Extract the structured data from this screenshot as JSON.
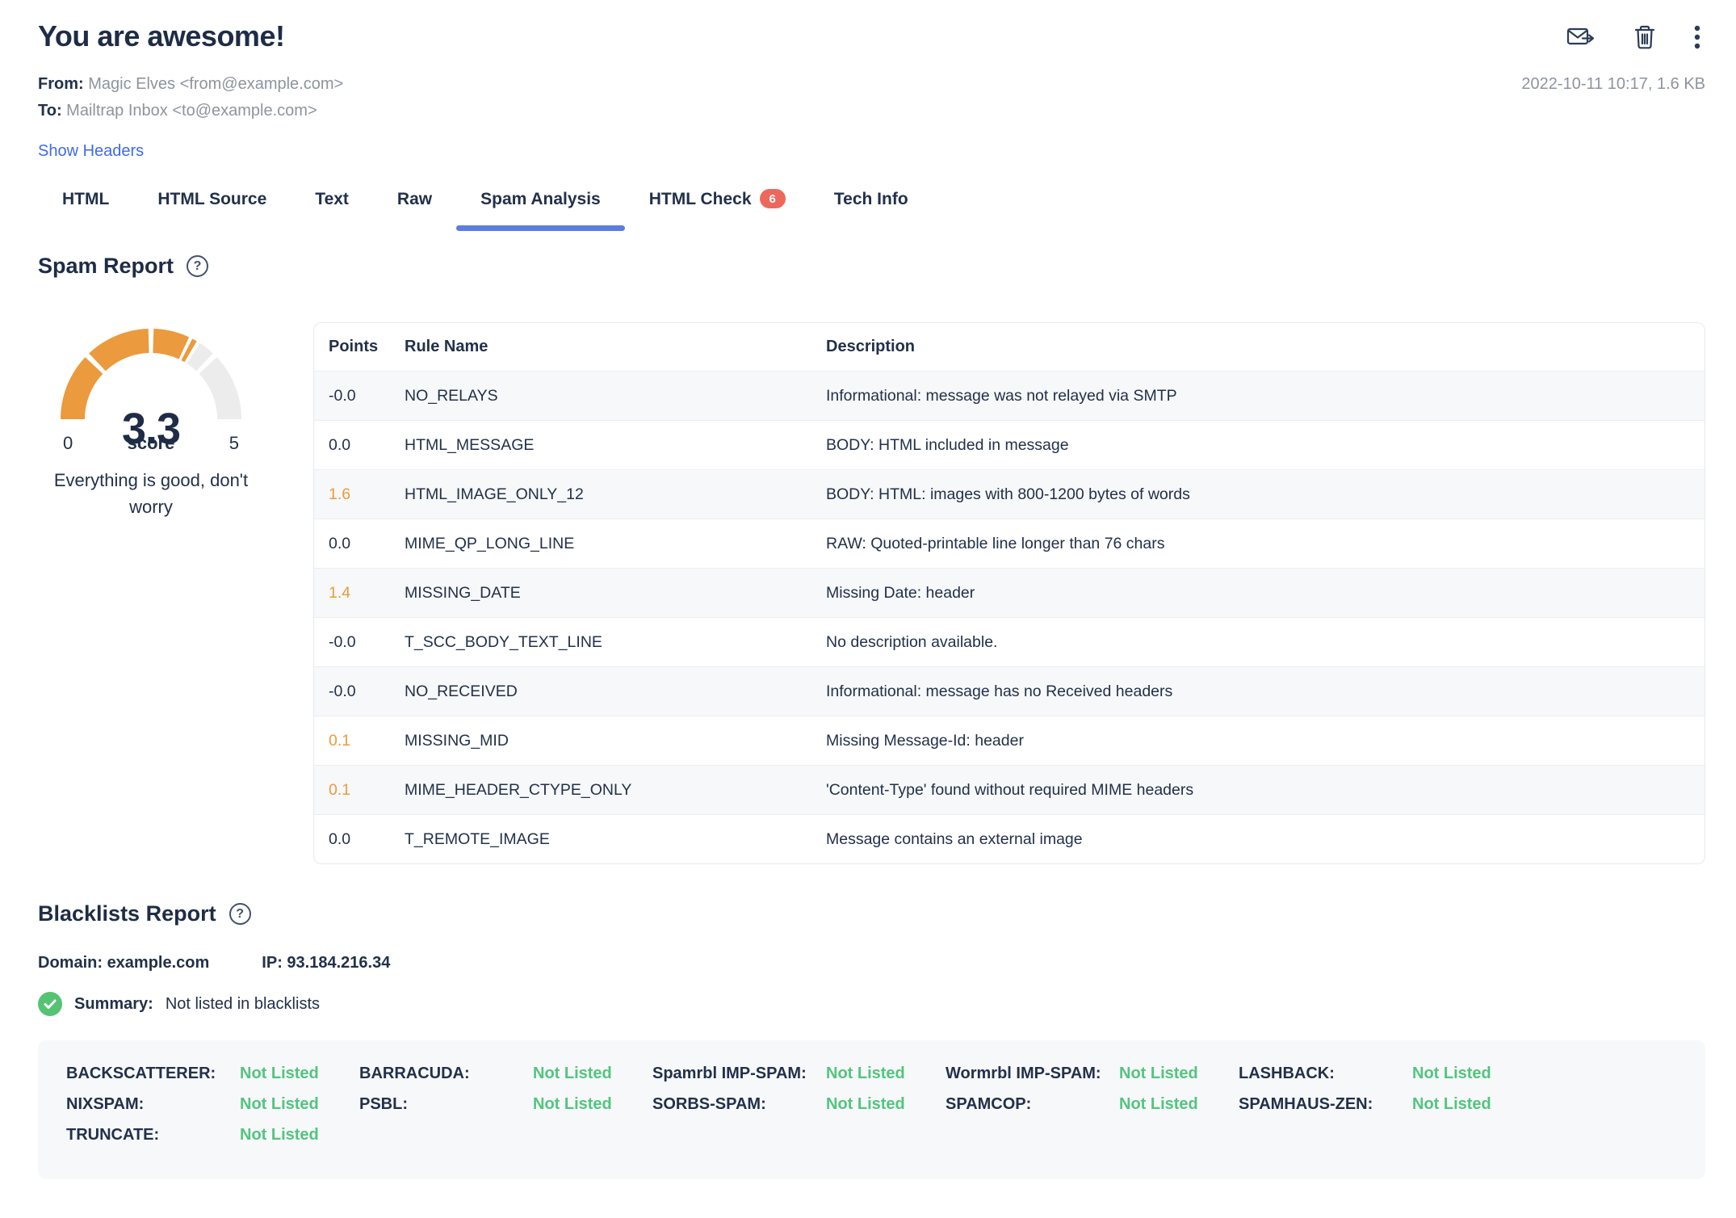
{
  "header": {
    "title": "You are awesome!",
    "from_label": "From:",
    "from_value": "Magic Elves <from@example.com>",
    "to_label": "To:",
    "to_value": "Mailtrap Inbox <to@example.com>",
    "show_headers": "Show Headers",
    "meta": "2022-10-11 10:17, 1.6 KB",
    "icons": [
      "forward-email",
      "delete",
      "more-options"
    ]
  },
  "tabs": [
    {
      "label": "HTML"
    },
    {
      "label": "HTML Source"
    },
    {
      "label": "Text"
    },
    {
      "label": "Raw"
    },
    {
      "label": "Spam Analysis",
      "active": true
    },
    {
      "label": "HTML Check",
      "badge": "6"
    },
    {
      "label": "Tech Info"
    }
  ],
  "spam_report": {
    "heading": "Spam Report",
    "gauge": {
      "score": "3.3",
      "min_label": "0",
      "score_label": "score",
      "max_label": "5",
      "max_value": 5,
      "segments": 4,
      "message": "Everything is good, don't worry"
    },
    "table": {
      "columns": [
        "Points",
        "Rule Name",
        "Description"
      ],
      "rows": [
        {
          "points": "-0.0",
          "rule": "NO_RELAYS",
          "description": "Informational: message was not relayed via SMTP"
        },
        {
          "points": "0.0",
          "rule": "HTML_MESSAGE",
          "description": "BODY: HTML included in message"
        },
        {
          "points": "1.6",
          "rule": "HTML_IMAGE_ONLY_12",
          "description": "BODY: HTML: images with 800-1200 bytes of words",
          "highlight": true
        },
        {
          "points": "0.0",
          "rule": "MIME_QP_LONG_LINE",
          "description": "RAW: Quoted-printable line longer than 76 chars"
        },
        {
          "points": "1.4",
          "rule": "MISSING_DATE",
          "description": "Missing Date: header",
          "highlight": true
        },
        {
          "points": "-0.0",
          "rule": "T_SCC_BODY_TEXT_LINE",
          "description": "No description available."
        },
        {
          "points": "-0.0",
          "rule": "NO_RECEIVED",
          "description": "Informational: message has no Received headers"
        },
        {
          "points": "0.1",
          "rule": "MISSING_MID",
          "description": "Missing Message-Id: header",
          "highlight": true
        },
        {
          "points": "0.1",
          "rule": "MIME_HEADER_CTYPE_ONLY",
          "description": "'Content-Type' found without required MIME headers",
          "highlight": true
        },
        {
          "points": "0.0",
          "rule": "T_REMOTE_IMAGE",
          "description": "Message contains an external image"
        }
      ]
    }
  },
  "blacklists": {
    "heading": "Blacklists Report",
    "domain_label": "Domain:",
    "domain_value": "example.com",
    "ip_label": "IP:",
    "ip_value": "93.184.216.34",
    "summary_label": "Summary:",
    "summary_value": "Not listed in blacklists",
    "entries": [
      {
        "name": "BACKSCATTERER:",
        "status": "Not Listed"
      },
      {
        "name": "BARRACUDA:",
        "status": "Not Listed"
      },
      {
        "name": "Spamrbl IMP-SPAM:",
        "status": "Not Listed"
      },
      {
        "name": "Wormrbl IMP-SPAM:",
        "status": "Not Listed"
      },
      {
        "name": "LASHBACK:",
        "status": "Not Listed"
      },
      {
        "name": "NIXSPAM:",
        "status": "Not Listed"
      },
      {
        "name": "PSBL:",
        "status": "Not Listed"
      },
      {
        "name": "SORBS-SPAM:",
        "status": "Not Listed"
      },
      {
        "name": "SPAMCOP:",
        "status": "Not Listed"
      },
      {
        "name": "SPAMHAUS-ZEN:",
        "status": "Not Listed"
      },
      {
        "name": "TRUNCATE:",
        "status": "Not Listed"
      }
    ]
  },
  "colors": {
    "navy": "#22304a",
    "gray_text": "#8d949e",
    "link_blue": "#3e6be8",
    "tab_underline_blue": "#5b7de2",
    "orange": "#eb9a3d",
    "gauge_gray": "#ececec",
    "green": "#52c57e",
    "badge_red": "#ec685c"
  }
}
